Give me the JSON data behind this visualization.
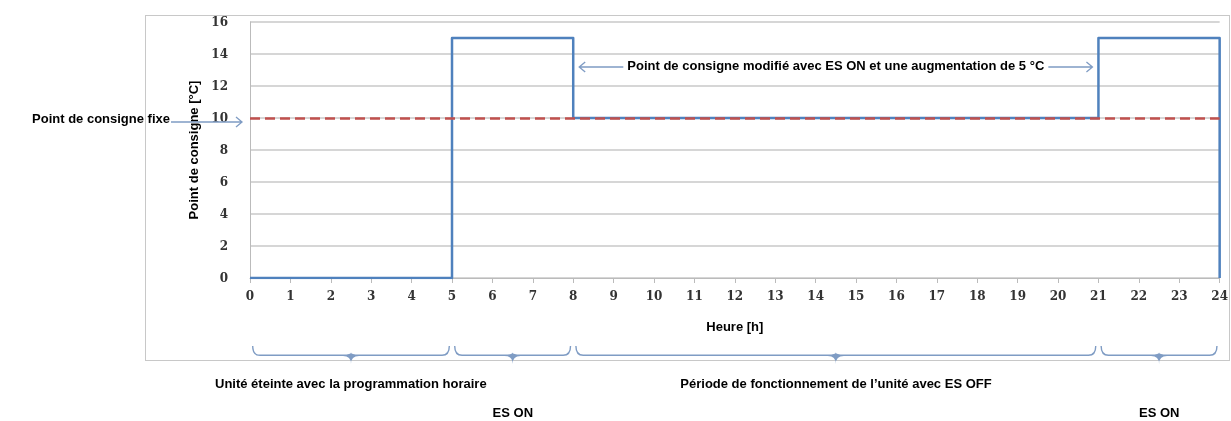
{
  "chart_data": {
    "type": "step",
    "xlabel": "Heure [h]",
    "ylabel": "Point de consigne [°C]",
    "x": [
      0,
      5,
      8,
      21,
      24
    ],
    "series": [
      {
        "color": "#4f81bd",
        "values": [
          0,
          15,
          10,
          15,
          0
        ]
      }
    ],
    "xlim": [
      0,
      24
    ],
    "xticks": [
      0,
      1,
      2,
      3,
      4,
      5,
      6,
      7,
      8,
      9,
      10,
      11,
      12,
      13,
      14,
      15,
      16,
      17,
      18,
      19,
      20,
      21,
      22,
      23,
      24
    ],
    "ylim": [
      0,
      16
    ],
    "yticks": [
      0,
      2,
      4,
      6,
      8,
      10,
      12,
      14,
      16
    ],
    "grid": "y",
    "marker": "none",
    "line_style": "solid",
    "ref_lines": [
      {
        "axis": "y",
        "value": 10,
        "label": "Point de consigne fixe",
        "color": "#c0504d",
        "line_style": "dashed"
      }
    ],
    "annotations": [
      "Point de consigne modifié avec ES ON et une augmentation de 5 °C",
      "Unité éteinte avec la programmation horaire",
      "ES ON",
      "Période de fonctionnement de l’unité avec ES OFF",
      "ES ON"
    ]
  }
}
